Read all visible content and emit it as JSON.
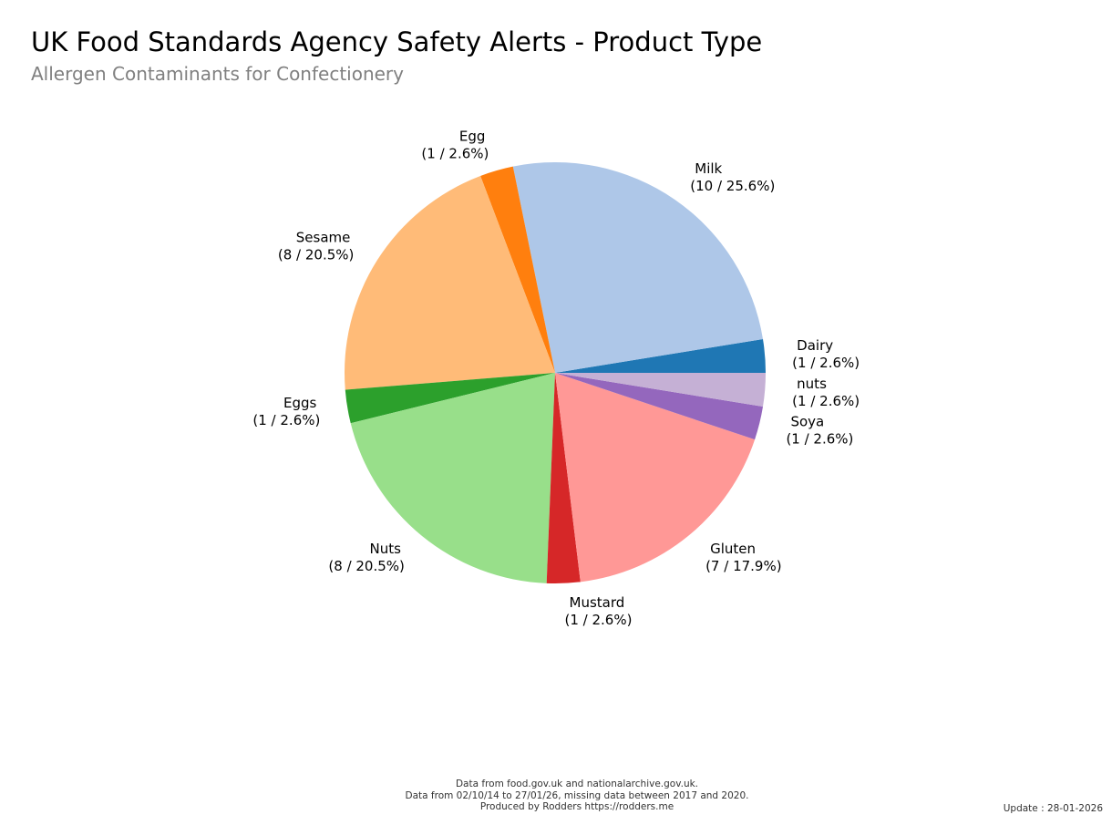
{
  "chart_data": {
    "type": "pie",
    "title": "UK Food Standards Agency Safety Alerts - Product Type",
    "subtitle": "Allergen Contaminants for Confectionery",
    "start": "3 o'clock",
    "direction": "counterclockwise",
    "slices": [
      {
        "name": "Dairy",
        "value": 1,
        "percent": 2.6,
        "color": "#1f77b4"
      },
      {
        "name": "Milk",
        "value": 10,
        "percent": 25.6,
        "color": "#aec7e8"
      },
      {
        "name": "Egg",
        "value": 1,
        "percent": 2.6,
        "color": "#ff7f0e"
      },
      {
        "name": "Sesame",
        "value": 8,
        "percent": 20.5,
        "color": "#ffbb78"
      },
      {
        "name": "Eggs",
        "value": 1,
        "percent": 2.6,
        "color": "#2ca02c"
      },
      {
        "name": "Nuts",
        "value": 8,
        "percent": 20.5,
        "color": "#98df8a"
      },
      {
        "name": "Mustard",
        "value": 1,
        "percent": 2.6,
        "color": "#d62728"
      },
      {
        "name": "Gluten",
        "value": 7,
        "percent": 17.9,
        "color": "#ff9896"
      },
      {
        "name": "Soya",
        "value": 1,
        "percent": 2.6,
        "color": "#9467bd"
      },
      {
        "name": "nuts",
        "value": 1,
        "percent": 2.6,
        "color": "#c5b0d5"
      }
    ]
  },
  "footer": {
    "line1": "Data from food.gov.uk and nationalarchive.gov.uk.",
    "line2": "Data from 02/10/14 to 27/01/26, missing data between 2017 and 2020.",
    "line3": "Produced by Rodders https://rodders.me",
    "update": "Update : 28-01-2026"
  }
}
